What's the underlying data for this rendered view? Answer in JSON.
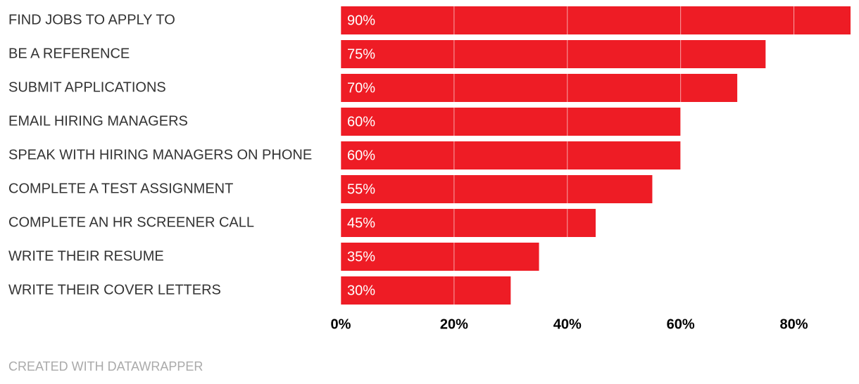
{
  "chart_data": {
    "type": "hbar",
    "categories": [
      "FIND JOBS TO APPLY TO",
      "BE A REFERENCE",
      "SUBMIT APPLICATIONS",
      "EMAIL HIRING MANAGERS",
      "SPEAK WITH HIRING MANAGERS ON PHONE",
      "COMPLETE A TEST ASSIGNMENT",
      "COMPLETE AN HR SCREENER CALL",
      "WRITE THEIR RESUME",
      "WRITE THEIR COVER LETTERS"
    ],
    "values": [
      90,
      75,
      70,
      60,
      60,
      55,
      45,
      35,
      30
    ],
    "value_labels": [
      "90%",
      "75%",
      "70%",
      "60%",
      "60%",
      "55%",
      "45%",
      "35%",
      "30%"
    ],
    "color": "#ee1c25",
    "xlim": [
      0,
      90
    ],
    "xticks": [
      {
        "value": 0,
        "label": "0%"
      },
      {
        "value": 20,
        "label": "20%"
      },
      {
        "value": 40,
        "label": "40%"
      },
      {
        "value": 60,
        "label": "60%"
      },
      {
        "value": 80,
        "label": "80%"
      }
    ],
    "grid": true,
    "source": "CREATED WITH DATAWRAPPER"
  }
}
